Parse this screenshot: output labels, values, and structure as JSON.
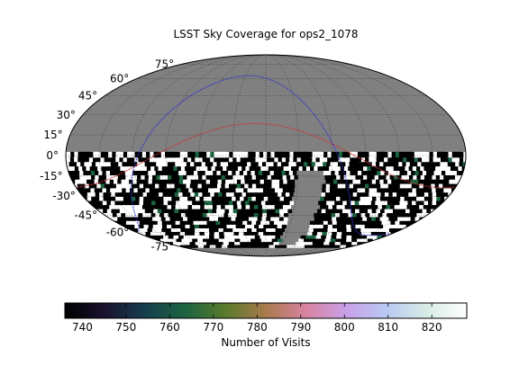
{
  "chart_data": {
    "type": "heatmap",
    "projection": "mollweide",
    "title": "LSST Sky Coverage for ops2_1078",
    "latitude_tick_labels": [
      {
        "deg": 75,
        "label": "75°"
      },
      {
        "deg": 60,
        "label": "60°"
      },
      {
        "deg": 45,
        "label": "45°"
      },
      {
        "deg": 30,
        "label": "30°"
      },
      {
        "deg": 15,
        "label": "15°"
      },
      {
        "deg": 0,
        "label": "0°"
      },
      {
        "deg": -15,
        "label": "-15°"
      },
      {
        "deg": -30,
        "label": "-30°"
      },
      {
        "deg": -45,
        "label": "-45°"
      },
      {
        "deg": -60,
        "label": "-60°"
      },
      {
        "deg": -75,
        "label": "-75°"
      }
    ],
    "grid": true,
    "background_color": "#808080",
    "covered_declination_range": [
      -73,
      3
    ],
    "colorbar": {
      "label": "Number of Visits",
      "range": [
        736,
        828
      ],
      "ticks": [
        {
          "value": 740,
          "label": "740"
        },
        {
          "value": 750,
          "label": "750"
        },
        {
          "value": 760,
          "label": "760"
        },
        {
          "value": 770,
          "label": "770"
        },
        {
          "value": 780,
          "label": "780"
        },
        {
          "value": 790,
          "label": "790"
        },
        {
          "value": 800,
          "label": "800"
        },
        {
          "value": 810,
          "label": "810"
        },
        {
          "value": 820,
          "label": "820"
        }
      ],
      "colormap": "cubehelix",
      "stops": [
        "#000000",
        "#1a1230",
        "#163e4f",
        "#1c6440",
        "#5a7a2c",
        "#a97a4d",
        "#d883a1",
        "#c9a0e8",
        "#b9c8f2",
        "#d7ece6",
        "#ffffff"
      ],
      "placement": "bottom"
    },
    "overlay_lines": [
      {
        "color": "#cc3333",
        "kind": "ecliptic"
      },
      {
        "color": "#3333cc",
        "kind": "galactic-plane"
      }
    ],
    "map_colors": {
      "dark": "#000000",
      "bright": "#ffffff",
      "mid": "#1c6440"
    }
  }
}
